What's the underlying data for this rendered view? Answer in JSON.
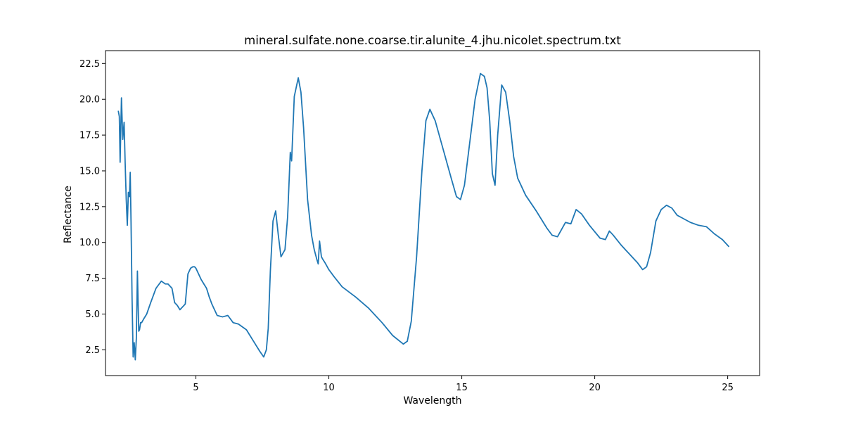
{
  "chart_data": {
    "type": "line",
    "title": "mineral.sulfate.none.coarse.tir.alunite_4.jhu.nicolet.spectrum.txt",
    "xlabel": "Wavelength",
    "ylabel": "Reflectance",
    "xlim": [
      1.6,
      26.2
    ],
    "ylim": [
      0.7,
      23.4
    ],
    "xticks": [
      5,
      10,
      15,
      20,
      25
    ],
    "yticks": [
      2.5,
      5.0,
      7.5,
      10.0,
      12.5,
      15.0,
      17.5,
      20.0,
      22.5
    ],
    "xtick_labels": [
      "5",
      "10",
      "15",
      "20",
      "25"
    ],
    "ytick_labels": [
      "2.5",
      "5.0",
      "7.5",
      "10.0",
      "12.5",
      "15.0",
      "17.5",
      "20.0",
      "22.5"
    ],
    "grid": false,
    "series": [
      {
        "color": "#1f77b4",
        "x": [
          2.08,
          2.12,
          2.15,
          2.2,
          2.25,
          2.3,
          2.34,
          2.38,
          2.42,
          2.46,
          2.5,
          2.53,
          2.56,
          2.6,
          2.64,
          2.68,
          2.72,
          2.76,
          2.8,
          2.85,
          2.88,
          2.92,
          2.96,
          3.05,
          3.15,
          3.3,
          3.5,
          3.7,
          3.85,
          3.95,
          4.1,
          4.2,
          4.3,
          4.4,
          4.5,
          4.6,
          4.7,
          4.8,
          4.88,
          4.95,
          5.0,
          5.1,
          5.2,
          5.4,
          5.5,
          5.6,
          5.8,
          6.0,
          6.2,
          6.4,
          6.6,
          6.9,
          7.2,
          7.4,
          7.55,
          7.65,
          7.72,
          7.8,
          7.9,
          8.0,
          8.1,
          8.2,
          8.35,
          8.45,
          8.55,
          8.6,
          8.64,
          8.7,
          8.85,
          8.95,
          9.05,
          9.2,
          9.35,
          9.45,
          9.55,
          9.6,
          9.65,
          9.72,
          9.78,
          9.85,
          10.0,
          10.2,
          10.5,
          11.0,
          11.5,
          12.0,
          12.4,
          12.8,
          12.95,
          13.1,
          13.3,
          13.5,
          13.65,
          13.8,
          14.0,
          14.3,
          14.6,
          14.8,
          14.95,
          15.1,
          15.3,
          15.5,
          15.7,
          15.85,
          15.95,
          16.05,
          16.15,
          16.25,
          16.35,
          16.5,
          16.65,
          16.8,
          16.95,
          17.1,
          17.4,
          17.8,
          18.2,
          18.4,
          18.6,
          18.9,
          19.1,
          19.3,
          19.5,
          19.8,
          20.2,
          20.4,
          20.55,
          20.7,
          21.0,
          21.3,
          21.6,
          21.8,
          21.95,
          22.1,
          22.3,
          22.5,
          22.7,
          22.9,
          23.1,
          23.3,
          23.6,
          23.9,
          24.2,
          24.5,
          24.8,
          25.05
        ],
        "values": [
          19.2,
          18.8,
          15.6,
          20.1,
          17.2,
          18.4,
          15.5,
          13.0,
          11.2,
          13.5,
          13.2,
          14.9,
          11.5,
          6.0,
          2.0,
          3.0,
          1.8,
          3.3,
          8.0,
          3.8,
          3.9,
          4.4,
          4.4,
          4.7,
          5.0,
          5.8,
          6.8,
          7.3,
          7.1,
          7.1,
          6.8,
          5.8,
          5.6,
          5.3,
          5.5,
          5.7,
          7.8,
          8.2,
          8.3,
          8.3,
          8.2,
          7.8,
          7.4,
          6.8,
          6.2,
          5.7,
          4.9,
          4.8,
          4.9,
          4.4,
          4.3,
          3.9,
          3.0,
          2.4,
          2.0,
          2.5,
          4.0,
          8.0,
          11.5,
          12.2,
          10.5,
          9.0,
          9.5,
          11.8,
          16.3,
          15.7,
          17.5,
          20.2,
          21.5,
          20.5,
          18.0,
          13.0,
          10.5,
          9.5,
          8.8,
          8.5,
          10.1,
          9.0,
          8.8,
          8.6,
          8.1,
          7.6,
          6.9,
          6.2,
          5.4,
          4.4,
          3.5,
          2.9,
          3.1,
          4.5,
          9.0,
          15.0,
          18.5,
          19.3,
          18.5,
          16.5,
          14.5,
          13.2,
          13.0,
          14.0,
          17.0,
          20.0,
          21.8,
          21.6,
          20.8,
          18.5,
          14.8,
          14.0,
          17.5,
          21.0,
          20.5,
          18.5,
          16.0,
          14.5,
          13.3,
          12.2,
          11.0,
          10.5,
          10.4,
          11.4,
          11.3,
          12.3,
          12.0,
          11.2,
          10.3,
          10.2,
          10.8,
          10.5,
          9.8,
          9.2,
          8.6,
          8.1,
          8.3,
          9.3,
          11.5,
          12.3,
          12.6,
          12.4,
          11.9,
          11.7,
          11.4,
          11.2,
          11.1,
          10.6,
          10.2,
          9.7
        ]
      }
    ]
  }
}
